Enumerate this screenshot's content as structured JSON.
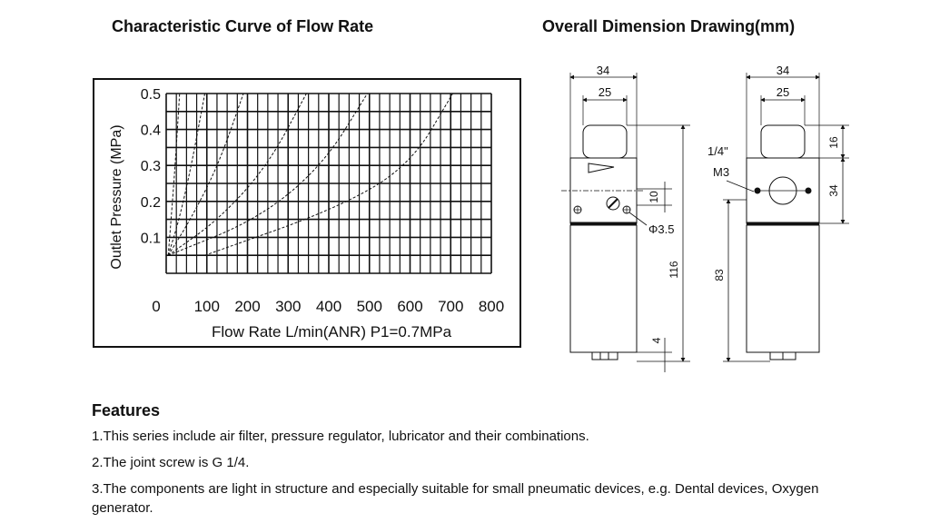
{
  "chart": {
    "title": "Characteristic Curve of Flow Rate"
  },
  "drawing": {
    "title": "Overall Dimension Drawing(mm)",
    "front_view": {
      "width_overall": "34",
      "width_body": "25",
      "port_offset": "10",
      "hole": "Φ3.5",
      "height_total": "116",
      "bottom": "4"
    },
    "side_view": {
      "width_overall": "34",
      "width_body": "25",
      "top": "16",
      "block": "34",
      "lower": "83",
      "port": "1/4\"",
      "thread": "M3"
    }
  },
  "features": {
    "heading": "Features",
    "items": [
      "1.This series include air filter, pressure regulator, lubricator and their combinations.",
      "2.The joint screw is G 1/4.",
      "3.The components are light in structure and especially  suitable for small pneumatic devices, e.g. Dental devices,  Oxygen generator."
    ]
  },
  "chart_data": {
    "type": "line",
    "title": "",
    "xlabel": "Flow Rate L/min(ANR) P1=0.7MPa",
    "ylabel": "Outlet Pressure (MPa)",
    "xlim": [
      0,
      800
    ],
    "ylim": [
      0,
      0.5
    ],
    "x_ticks": [
      "0",
      "100",
      "200",
      "300",
      "400",
      "500",
      "600",
      "700",
      "800"
    ],
    "y_ticks": [
      "0.1",
      "0.2",
      "0.3",
      "0.4",
      "0.5"
    ],
    "grid": true,
    "series": [
      {
        "points": [
          [
            5,
            0.05
          ],
          [
            12,
            0.15
          ],
          [
            22,
            0.3
          ],
          [
            33,
            0.5
          ]
        ]
      },
      {
        "points": [
          [
            5,
            0.05
          ],
          [
            32,
            0.15
          ],
          [
            62,
            0.3
          ],
          [
            95,
            0.5
          ]
        ]
      },
      {
        "points": [
          [
            5,
            0.05
          ],
          [
            60,
            0.15
          ],
          [
            128,
            0.3
          ],
          [
            190,
            0.5
          ]
        ]
      },
      {
        "points": [
          [
            5,
            0.05
          ],
          [
            130,
            0.15
          ],
          [
            250,
            0.3
          ],
          [
            345,
            0.5
          ]
        ]
      },
      {
        "points": [
          [
            5,
            0.05
          ],
          [
            225,
            0.15
          ],
          [
            385,
            0.3
          ],
          [
            495,
            0.5
          ]
        ]
      },
      {
        "points": [
          [
            95,
            0.05
          ],
          [
            420,
            0.18
          ],
          [
            600,
            0.3
          ],
          [
            705,
            0.5
          ]
        ]
      }
    ]
  }
}
